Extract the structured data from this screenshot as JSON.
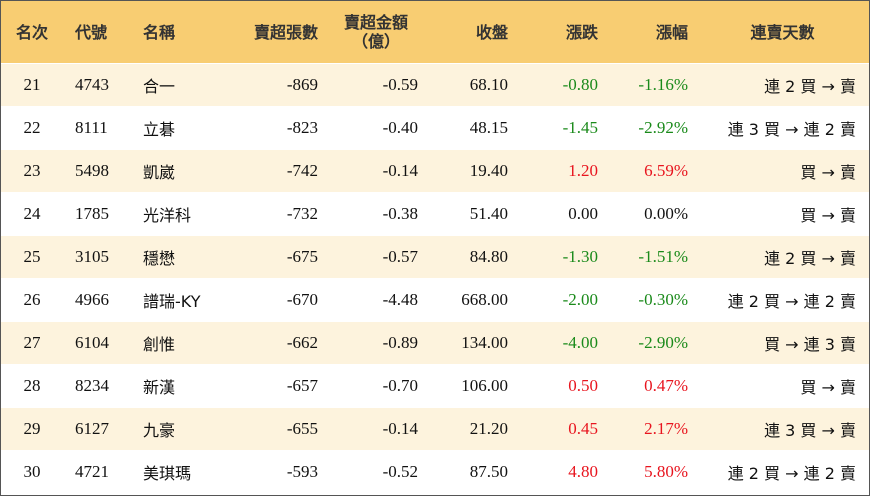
{
  "table": {
    "header": [
      "名次",
      "代號",
      "名稱",
      "賣超張數",
      [
        "賣超金額",
        "（億）"
      ],
      "收盤",
      "漲跌",
      "漲幅",
      "連賣天數"
    ],
    "rows": [
      [
        "21",
        "4743",
        "合一",
        "-869",
        "-0.59",
        "68.10",
        "-0.80",
        "-1.16%",
        "連 2 買 → 賣"
      ],
      [
        "22",
        "8111",
        "立碁",
        "-823",
        "-0.40",
        "48.15",
        "-1.45",
        "-2.92%",
        "連 3 買 → 連 2 賣"
      ],
      [
        "23",
        "5498",
        "凱崴",
        "-742",
        "-0.14",
        "19.40",
        "1.20",
        "6.59%",
        "買 → 賣"
      ],
      [
        "24",
        "1785",
        "光洋科",
        "-732",
        "-0.38",
        "51.40",
        "0.00",
        "0.00%",
        "買 → 賣"
      ],
      [
        "25",
        "3105",
        "穩懋",
        "-675",
        "-0.57",
        "84.80",
        "-1.30",
        "-1.51%",
        "連 2 買 → 賣"
      ],
      [
        "26",
        "4966",
        "譜瑞-KY",
        "-670",
        "-4.48",
        "668.00",
        "-2.00",
        "-0.30%",
        "連 2 買 → 連 2 賣"
      ],
      [
        "27",
        "6104",
        "創惟",
        "-662",
        "-0.89",
        "134.00",
        "-4.00",
        "-2.90%",
        "買 → 連 3 賣"
      ],
      [
        "28",
        "8234",
        "新漢",
        "-657",
        "-0.70",
        "106.00",
        "0.50",
        "0.47%",
        "買 → 賣"
      ],
      [
        "29",
        "6127",
        "九豪",
        "-655",
        "-0.14",
        "21.20",
        "0.45",
        "2.17%",
        "連 3 買 → 賣"
      ],
      [
        "30",
        "4721",
        "美琪瑪",
        "-593",
        "-0.52",
        "87.50",
        "4.80",
        "5.80%",
        "連 2 買 → 連 2 賣"
      ]
    ]
  }
}
